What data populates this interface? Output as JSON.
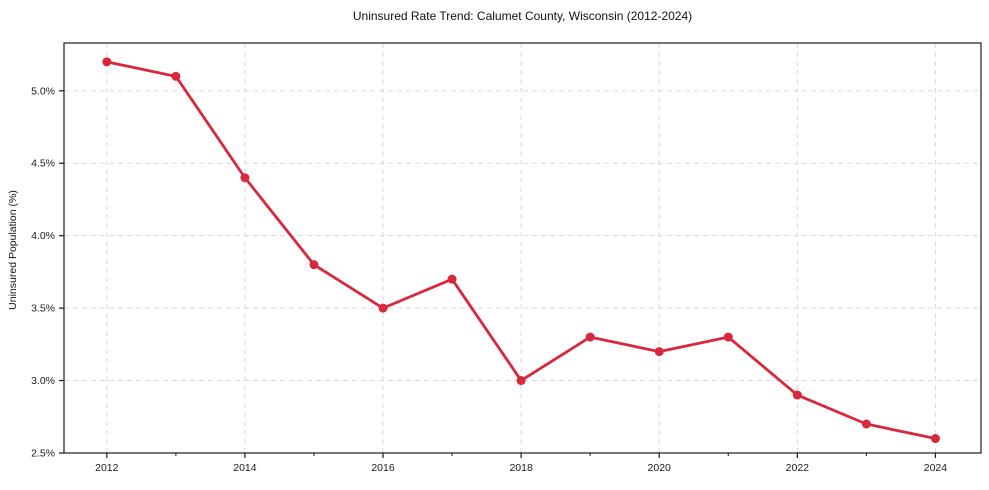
{
  "chart_data": {
    "type": "line",
    "title": "Uninsured Rate Trend: Calumet County, Wisconsin (2012-2024)",
    "xlabel": "",
    "ylabel": "Uninsured Population (%)",
    "x": [
      2012,
      2013,
      2014,
      2015,
      2016,
      2017,
      2018,
      2019,
      2020,
      2021,
      2022,
      2023,
      2024
    ],
    "series": [
      {
        "name": "Uninsured Population (%)",
        "values": [
          5.2,
          5.1,
          4.4,
          3.8,
          3.5,
          3.7,
          3.0,
          3.3,
          3.2,
          3.3,
          2.9,
          2.7,
          2.6
        ],
        "marker": "circle"
      }
    ],
    "xlim": [
      2011.38,
      2024.66
    ],
    "ylim": [
      2.5,
      5.33
    ],
    "xticks": {
      "major": [
        2012,
        2014,
        2016,
        2018,
        2020,
        2022,
        2024
      ],
      "major_labels": [
        "2012",
        "2014",
        "2016",
        "2018",
        "2020",
        "2022",
        "2024"
      ],
      "minor": [
        2013,
        2015,
        2017,
        2019,
        2021,
        2023
      ]
    },
    "yticks": {
      "values": [
        2.5,
        3.0,
        3.5,
        4.0,
        4.5,
        5.0
      ],
      "labels": [
        "2.5%",
        "3.0%",
        "3.5%",
        "4.0%",
        "4.5%",
        "5.0%"
      ]
    },
    "grid": "both-major-dashed",
    "legend": "none",
    "colors": {
      "line": "#d8283c",
      "grid": "#d9d9d9",
      "axis": "#1a1a1a",
      "text": "#1a1a1a",
      "background": "#ffffff"
    },
    "style": {
      "line_width": 2.8,
      "marker_radius": 4.5
    }
  }
}
